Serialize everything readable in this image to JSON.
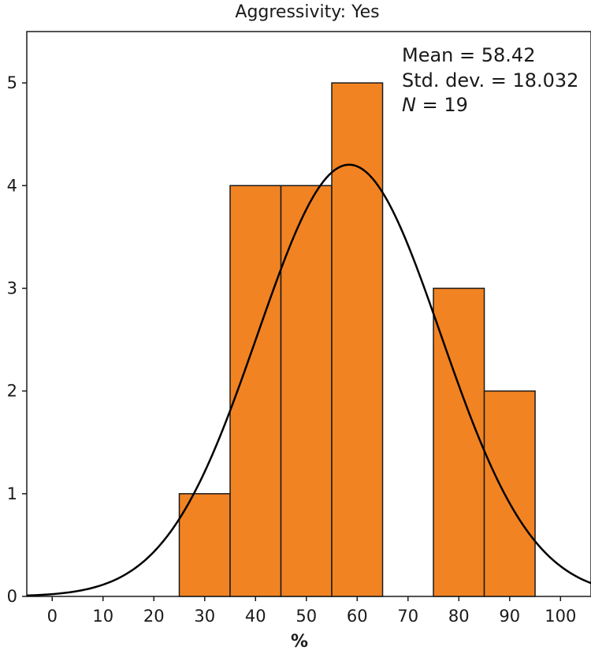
{
  "chart_data": {
    "type": "bar",
    "subtype": "histogram",
    "title": "Aggressivity: Yes",
    "xlabel": "%",
    "ylabel": "",
    "xlim": [
      -5,
      106
    ],
    "ylim": [
      0,
      5.5
    ],
    "x_ticks": [
      0,
      10,
      20,
      30,
      40,
      50,
      60,
      70,
      80,
      90,
      100
    ],
    "y_ticks": [
      0,
      1,
      2,
      3,
      4,
      5
    ],
    "bins": [
      {
        "start": 25,
        "end": 35,
        "count": 1
      },
      {
        "start": 35,
        "end": 45,
        "count": 4
      },
      {
        "start": 45,
        "end": 55,
        "count": 4
      },
      {
        "start": 55,
        "end": 65,
        "count": 5
      },
      {
        "start": 65,
        "end": 75,
        "count": 0
      },
      {
        "start": 75,
        "end": 85,
        "count": 3
      },
      {
        "start": 85,
        "end": 95,
        "count": 2
      }
    ],
    "normal_curve": {
      "mean": 58.42,
      "sd": 18.032,
      "n": 19,
      "bin_width": 10
    },
    "stats_text": {
      "mean": "Mean = 58.42",
      "sd": "Std. dev. = 18.032",
      "n_label": "N",
      "n_value": " = 19"
    },
    "bar_color": "#F28322",
    "curve_color": "#000000"
  }
}
